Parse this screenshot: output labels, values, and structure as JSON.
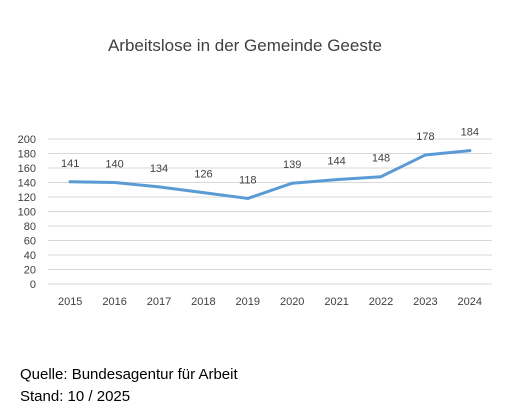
{
  "chart_data": {
    "type": "line",
    "title": "Arbeitslose in der Gemeinde Geeste",
    "categories": [
      "2015",
      "2016",
      "2017",
      "2018",
      "2019",
      "2020",
      "2021",
      "2022",
      "2023",
      "2024"
    ],
    "series": [
      {
        "values": [
          141,
          140,
          134,
          126,
          118,
          139,
          144,
          148,
          178,
          184
        ],
        "color": "#5b9bd5"
      }
    ],
    "ylim": [
      0,
      200
    ],
    "yticks": [
      "0",
      "20",
      "40",
      "60",
      "80",
      "100",
      "120",
      "140",
      "160",
      "180",
      "200"
    ],
    "data_labels": [
      "141",
      "140",
      "134",
      "126",
      "118",
      "139",
      "144",
      "148",
      "178",
      "184"
    ],
    "grid": true,
    "legend": "none",
    "xlabel": "",
    "ylabel": ""
  },
  "footer": {
    "source": "Quelle: Bundesagentur für Arbeit",
    "date": "Stand: 10 / 2025"
  },
  "colors": {
    "line": "#5b9bd5",
    "grid": "#d9d9d9",
    "text": "#404040"
  }
}
